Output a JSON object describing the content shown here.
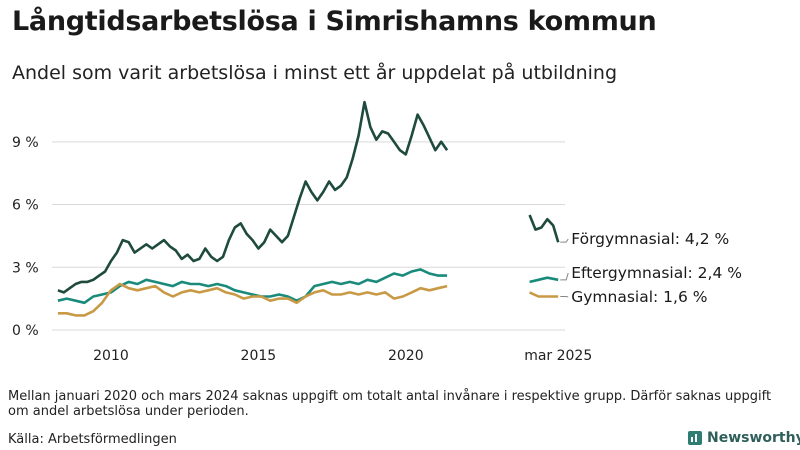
{
  "title": "Långtidsarbetslösa i Simrishamns kommun",
  "subtitle": "Andel som varit arbetslösa i minst ett år uppdelat på utbildning",
  "note": "Mellan januari 2020 och mars 2024 saknas uppgift om totalt antal invånare i respektive grupp. Därför saknas uppgift om andel arbetslösa under perioden.",
  "source": "Källa: Arbetsförmedlingen",
  "logo_text": "Newsworthy",
  "chart_data": {
    "type": "line",
    "title": "Långtidsarbetslösa i Simrishamns kommun",
    "subtitle": "Andel som varit arbetslösa i minst ett år uppdelat på utbildning",
    "x_ticks": [
      {
        "value": 2010,
        "label": "2010"
      },
      {
        "value": 2015,
        "label": "2015"
      },
      {
        "value": 2020,
        "label": "2020"
      },
      {
        "value": 2025.17,
        "label": "mar 2025"
      }
    ],
    "y_ticks": [
      {
        "value": 0,
        "label": "0 %"
      },
      {
        "value": 3,
        "label": "3 %"
      },
      {
        "value": 6,
        "label": "6 %"
      },
      {
        "value": 9,
        "label": "9 %"
      }
    ],
    "xlim": [
      2008,
      2025.4
    ],
    "ylim": [
      0,
      11
    ],
    "grid": true,
    "series": [
      {
        "name": "Förgymnasial",
        "end_label": "Förgymnasial: 4,2 %",
        "color": "#1f4a3e",
        "segments": [
          [
            [
              2008.2,
              1.9
            ],
            [
              2008.4,
              1.8
            ],
            [
              2008.6,
              2.0
            ],
            [
              2008.8,
              2.2
            ],
            [
              2009.0,
              2.3
            ],
            [
              2009.2,
              2.3
            ],
            [
              2009.4,
              2.4
            ],
            [
              2009.6,
              2.6
            ],
            [
              2009.8,
              2.8
            ],
            [
              2010.0,
              3.3
            ],
            [
              2010.2,
              3.7
            ],
            [
              2010.4,
              4.3
            ],
            [
              2010.6,
              4.2
            ],
            [
              2010.8,
              3.7
            ],
            [
              2011.0,
              3.9
            ],
            [
              2011.2,
              4.1
            ],
            [
              2011.4,
              3.9
            ],
            [
              2011.6,
              4.1
            ],
            [
              2011.8,
              4.3
            ],
            [
              2012.0,
              4.0
            ],
            [
              2012.2,
              3.8
            ],
            [
              2012.4,
              3.4
            ],
            [
              2012.6,
              3.6
            ],
            [
              2012.8,
              3.3
            ],
            [
              2013.0,
              3.4
            ],
            [
              2013.2,
              3.9
            ],
            [
              2013.4,
              3.5
            ],
            [
              2013.6,
              3.3
            ],
            [
              2013.8,
              3.5
            ],
            [
              2014.0,
              4.3
            ],
            [
              2014.2,
              4.9
            ],
            [
              2014.4,
              5.1
            ],
            [
              2014.6,
              4.6
            ],
            [
              2014.8,
              4.3
            ],
            [
              2015.0,
              3.9
            ],
            [
              2015.2,
              4.2
            ],
            [
              2015.4,
              4.8
            ],
            [
              2015.6,
              4.5
            ],
            [
              2015.8,
              4.2
            ],
            [
              2016.0,
              4.5
            ],
            [
              2016.2,
              5.4
            ],
            [
              2016.4,
              6.3
            ],
            [
              2016.6,
              7.1
            ],
            [
              2016.8,
              6.6
            ],
            [
              2017.0,
              6.2
            ],
            [
              2017.2,
              6.6
            ],
            [
              2017.4,
              7.1
            ],
            [
              2017.6,
              6.7
            ],
            [
              2017.8,
              6.9
            ],
            [
              2018.0,
              7.3
            ],
            [
              2018.2,
              8.2
            ],
            [
              2018.4,
              9.3
            ],
            [
              2018.6,
              10.9
            ],
            [
              2018.8,
              9.7
            ],
            [
              2019.0,
              9.1
            ],
            [
              2019.2,
              9.5
            ],
            [
              2019.4,
              9.4
            ],
            [
              2019.6,
              9.0
            ],
            [
              2019.8,
              8.6
            ],
            [
              2020.0,
              8.4
            ],
            [
              2020.2,
              9.3
            ],
            [
              2020.4,
              10.3
            ],
            [
              2020.6,
              9.8
            ],
            [
              2020.8,
              9.2
            ],
            [
              2021.0,
              8.6
            ],
            [
              2021.2,
              9.0
            ],
            [
              2021.4,
              8.6
            ]
          ],
          [
            [
              2024.2,
              5.5
            ],
            [
              2024.4,
              4.8
            ],
            [
              2024.6,
              4.9
            ],
            [
              2024.8,
              5.3
            ],
            [
              2025.0,
              5.0
            ],
            [
              2025.17,
              4.2
            ]
          ]
        ]
      },
      {
        "name": "Eftergymnasial",
        "end_label": "Eftergymnasial: 2,4 %",
        "color": "#1a8a7a",
        "segments": [
          [
            [
              2008.2,
              1.4
            ],
            [
              2008.5,
              1.5
            ],
            [
              2008.8,
              1.4
            ],
            [
              2009.1,
              1.3
            ],
            [
              2009.4,
              1.6
            ],
            [
              2009.7,
              1.7
            ],
            [
              2010.0,
              1.8
            ],
            [
              2010.3,
              2.1
            ],
            [
              2010.6,
              2.3
            ],
            [
              2010.9,
              2.2
            ],
            [
              2011.2,
              2.4
            ],
            [
              2011.5,
              2.3
            ],
            [
              2011.8,
              2.2
            ],
            [
              2012.1,
              2.1
            ],
            [
              2012.4,
              2.3
            ],
            [
              2012.7,
              2.2
            ],
            [
              2013.0,
              2.2
            ],
            [
              2013.3,
              2.1
            ],
            [
              2013.6,
              2.2
            ],
            [
              2013.9,
              2.1
            ],
            [
              2014.2,
              1.9
            ],
            [
              2014.5,
              1.8
            ],
            [
              2014.8,
              1.7
            ],
            [
              2015.1,
              1.6
            ],
            [
              2015.4,
              1.6
            ],
            [
              2015.7,
              1.7
            ],
            [
              2016.0,
              1.6
            ],
            [
              2016.3,
              1.4
            ],
            [
              2016.6,
              1.6
            ],
            [
              2016.9,
              2.1
            ],
            [
              2017.2,
              2.2
            ],
            [
              2017.5,
              2.3
            ],
            [
              2017.8,
              2.2
            ],
            [
              2018.1,
              2.3
            ],
            [
              2018.4,
              2.2
            ],
            [
              2018.7,
              2.4
            ],
            [
              2019.0,
              2.3
            ],
            [
              2019.3,
              2.5
            ],
            [
              2019.6,
              2.7
            ],
            [
              2019.9,
              2.6
            ],
            [
              2020.2,
              2.8
            ],
            [
              2020.5,
              2.9
            ],
            [
              2020.8,
              2.7
            ],
            [
              2021.1,
              2.6
            ],
            [
              2021.4,
              2.6
            ]
          ],
          [
            [
              2024.2,
              2.3
            ],
            [
              2024.5,
              2.4
            ],
            [
              2024.8,
              2.5
            ],
            [
              2025.17,
              2.4
            ]
          ]
        ]
      },
      {
        "name": "Gymnasial",
        "end_label": "Gymnasial: 1,6 %",
        "color": "#c99a45",
        "segments": [
          [
            [
              2008.2,
              0.8
            ],
            [
              2008.5,
              0.8
            ],
            [
              2008.8,
              0.7
            ],
            [
              2009.1,
              0.7
            ],
            [
              2009.4,
              0.9
            ],
            [
              2009.7,
              1.3
            ],
            [
              2010.0,
              1.9
            ],
            [
              2010.3,
              2.2
            ],
            [
              2010.6,
              2.0
            ],
            [
              2010.9,
              1.9
            ],
            [
              2011.2,
              2.0
            ],
            [
              2011.5,
              2.1
            ],
            [
              2011.8,
              1.8
            ],
            [
              2012.1,
              1.6
            ],
            [
              2012.4,
              1.8
            ],
            [
              2012.7,
              1.9
            ],
            [
              2013.0,
              1.8
            ],
            [
              2013.3,
              1.9
            ],
            [
              2013.6,
              2.0
            ],
            [
              2013.9,
              1.8
            ],
            [
              2014.2,
              1.7
            ],
            [
              2014.5,
              1.5
            ],
            [
              2014.8,
              1.6
            ],
            [
              2015.1,
              1.6
            ],
            [
              2015.4,
              1.4
            ],
            [
              2015.7,
              1.5
            ],
            [
              2016.0,
              1.5
            ],
            [
              2016.3,
              1.3
            ],
            [
              2016.6,
              1.6
            ],
            [
              2016.9,
              1.8
            ],
            [
              2017.2,
              1.9
            ],
            [
              2017.5,
              1.7
            ],
            [
              2017.8,
              1.7
            ],
            [
              2018.1,
              1.8
            ],
            [
              2018.4,
              1.7
            ],
            [
              2018.7,
              1.8
            ],
            [
              2019.0,
              1.7
            ],
            [
              2019.3,
              1.8
            ],
            [
              2019.6,
              1.5
            ],
            [
              2019.9,
              1.6
            ],
            [
              2020.2,
              1.8
            ],
            [
              2020.5,
              2.0
            ],
            [
              2020.8,
              1.9
            ],
            [
              2021.1,
              2.0
            ],
            [
              2021.4,
              2.1
            ]
          ],
          [
            [
              2024.2,
              1.8
            ],
            [
              2024.5,
              1.6
            ],
            [
              2024.8,
              1.6
            ],
            [
              2025.17,
              1.6
            ]
          ]
        ]
      }
    ]
  }
}
